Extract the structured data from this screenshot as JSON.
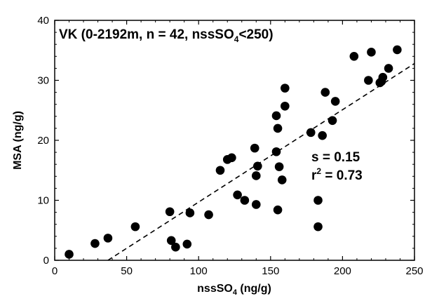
{
  "chart_data": {
    "type": "scatter",
    "title": "",
    "xlabel_main": "nssSO",
    "xlabel_sub": "4",
    "xlabel_unit": " (ng/g)",
    "ylabel": "MSA (ng/g)",
    "xlim": [
      0,
      250
    ],
    "ylim": [
      0,
      40
    ],
    "xticks": [
      "0",
      "50",
      "100",
      "150",
      "200",
      "250"
    ],
    "yticks": [
      "0",
      "10",
      "20",
      "30",
      "40"
    ],
    "grid": false,
    "legend": "none",
    "annotation_box": {
      "text_before_sub": "VK (0-2192m, n = 42, nssSO",
      "sub": "4",
      "text_after_sub": "<250)"
    },
    "stats": {
      "slope_label": "s = 0.15",
      "r2_prefix": "r",
      "r2_sup": "2",
      "r2_value": " = 0.73"
    },
    "regression": {
      "style": "dashed",
      "x": [
        37,
        250
      ],
      "y": [
        0,
        32.8
      ]
    },
    "points": [
      [
        10,
        1.0
      ],
      [
        28,
        2.8
      ],
      [
        37,
        3.7
      ],
      [
        56,
        5.6
      ],
      [
        80,
        8.1
      ],
      [
        81,
        3.3
      ],
      [
        84,
        2.2
      ],
      [
        92,
        2.7
      ],
      [
        94,
        7.9
      ],
      [
        107,
        7.6
      ],
      [
        115,
        15.0
      ],
      [
        120,
        16.8
      ],
      [
        123,
        17.1
      ],
      [
        127,
        10.9
      ],
      [
        132,
        10.0
      ],
      [
        139,
        18.7
      ],
      [
        140,
        14.1
      ],
      [
        140,
        9.3
      ],
      [
        141,
        15.7
      ],
      [
        154,
        18.1
      ],
      [
        154,
        24.1
      ],
      [
        155,
        8.4
      ],
      [
        155,
        22.0
      ],
      [
        156,
        15.6
      ],
      [
        158,
        13.4
      ],
      [
        160,
        25.7
      ],
      [
        160,
        28.7
      ],
      [
        178,
        21.3
      ],
      [
        183,
        10.0
      ],
      [
        183,
        5.6
      ],
      [
        186,
        20.8
      ],
      [
        188,
        28.0
      ],
      [
        193,
        23.3
      ],
      [
        195,
        26.5
      ],
      [
        208,
        34.0
      ],
      [
        218,
        30.0
      ],
      [
        220,
        34.7
      ],
      [
        226,
        29.6
      ],
      [
        227,
        29.8
      ],
      [
        228,
        30.5
      ],
      [
        232,
        32.0
      ],
      [
        238,
        35.1
      ]
    ]
  }
}
